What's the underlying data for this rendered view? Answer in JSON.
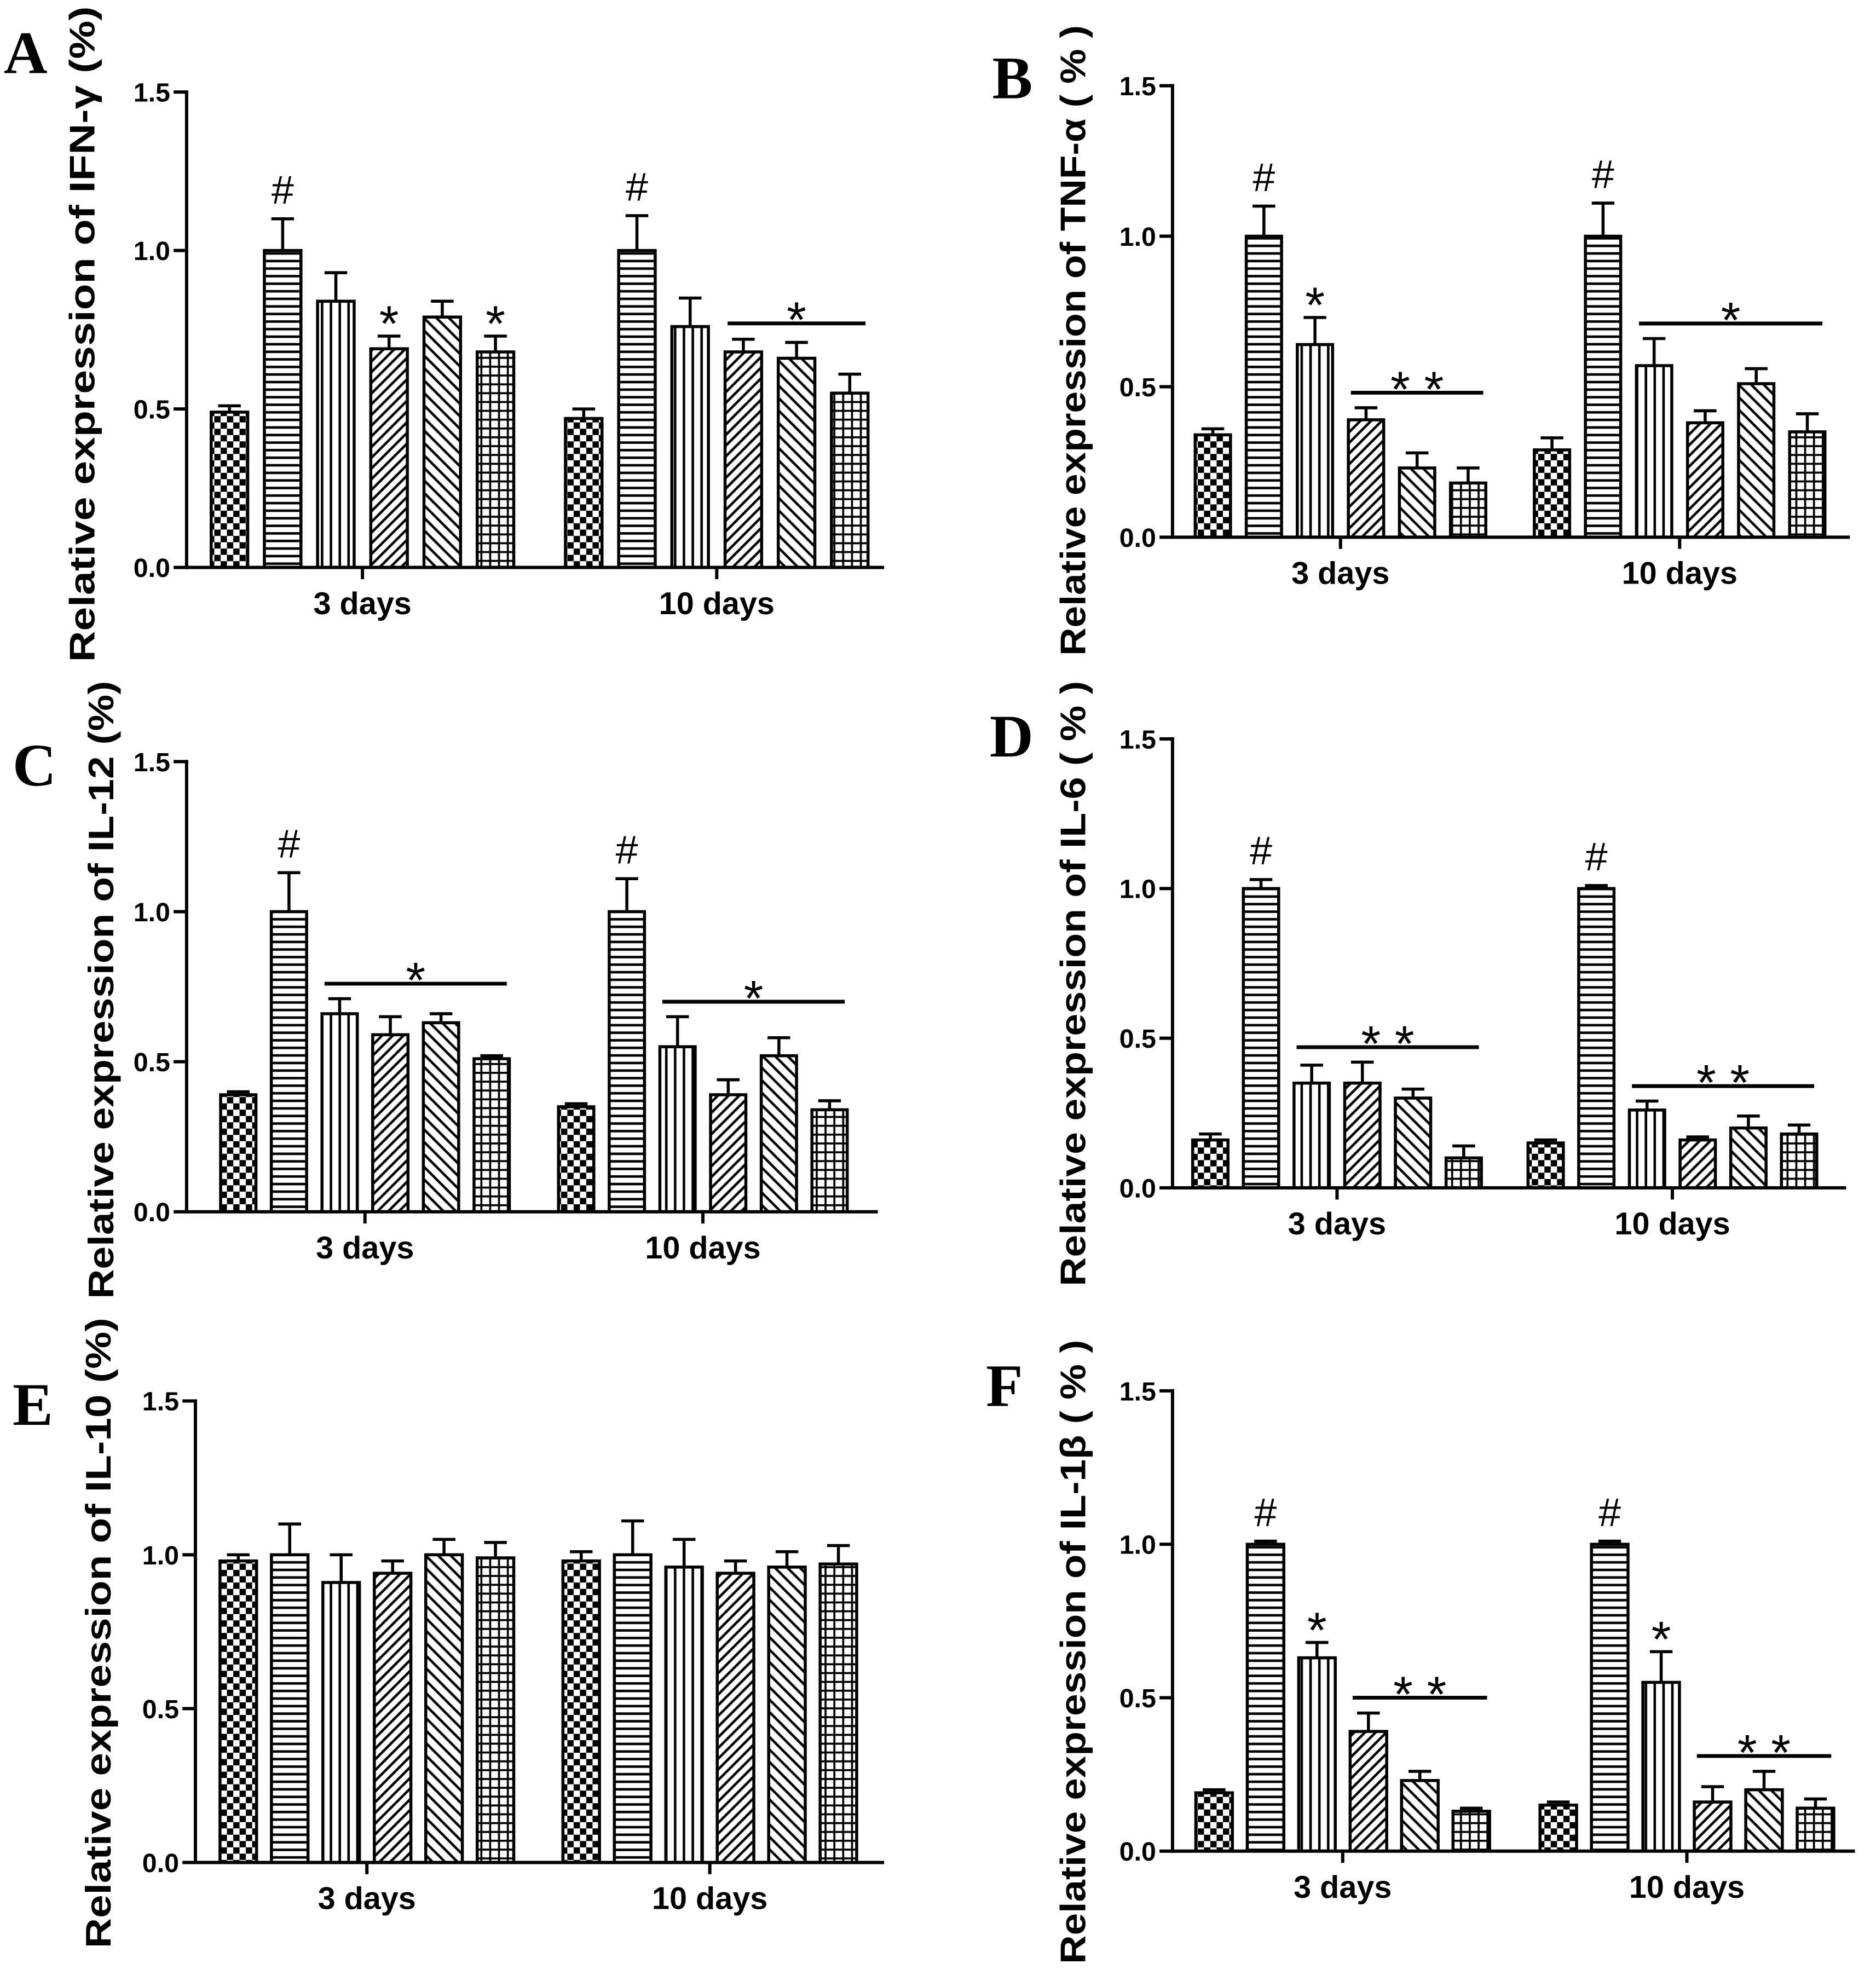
{
  "chart_data": [
    {
      "type": "bar",
      "panel_label": "A",
      "ylabel": "Relative expression of IFN-γ (%)",
      "categories": [
        "3 days",
        "10 days"
      ],
      "ylim": [
        0,
        1.5
      ],
      "yticks": [
        "0.0",
        "0.5",
        "1.0",
        "1.5"
      ],
      "values": [
        [
          0.49,
          1.0,
          0.84,
          0.69,
          0.79,
          0.68
        ],
        [
          0.47,
          1.0,
          0.76,
          0.68,
          0.66,
          0.55
        ]
      ],
      "errors": [
        [
          0.02,
          0.1,
          0.09,
          0.04,
          0.05,
          0.05
        ],
        [
          0.03,
          0.11,
          0.09,
          0.04,
          0.05,
          0.06
        ]
      ],
      "markers": [
        {
          "category": 0,
          "bar": 1,
          "text": "#"
        },
        {
          "category": 0,
          "bar": 3,
          "text": "*"
        },
        {
          "category": 0,
          "bar": 5,
          "text": "*"
        },
        {
          "category": 1,
          "bar": 1,
          "text": "#"
        }
      ],
      "brackets": [
        {
          "category": 1,
          "from": 3,
          "to": 5,
          "text": "*"
        }
      ]
    },
    {
      "type": "bar",
      "panel_label": "B",
      "ylabel": "Relative expression of TNF-α ( % )",
      "categories": [
        "3 days",
        "10 days"
      ],
      "ylim": [
        0,
        1.5
      ],
      "yticks": [
        "0.0",
        "0.5",
        "1.0",
        "1.5"
      ],
      "values": [
        [
          0.34,
          1.0,
          0.64,
          0.39,
          0.23,
          0.18
        ],
        [
          0.29,
          1.0,
          0.57,
          0.38,
          0.51,
          0.35
        ]
      ],
      "errors": [
        [
          0.02,
          0.1,
          0.09,
          0.04,
          0.05,
          0.05
        ],
        [
          0.04,
          0.11,
          0.09,
          0.04,
          0.05,
          0.06
        ]
      ],
      "markers": [
        {
          "category": 0,
          "bar": 1,
          "text": "#"
        },
        {
          "category": 0,
          "bar": 2,
          "text": "*"
        },
        {
          "category": 1,
          "bar": 1,
          "text": "#"
        }
      ],
      "brackets": [
        {
          "category": 0,
          "from": 3,
          "to": 5,
          "text": "* *"
        },
        {
          "category": 1,
          "from": 2,
          "to": 5,
          "text": "*"
        }
      ]
    },
    {
      "type": "bar",
      "panel_label": "C",
      "ylabel": "Relative expression of IL-12 (%)",
      "categories": [
        "3 days",
        "10 days"
      ],
      "ylim": [
        0,
        1.5
      ],
      "yticks": [
        "0.0",
        "0.5",
        "1.0",
        "1.5"
      ],
      "values": [
        [
          0.39,
          1.0,
          0.66,
          0.59,
          0.63,
          0.51
        ],
        [
          0.35,
          1.0,
          0.55,
          0.39,
          0.52,
          0.34
        ]
      ],
      "errors": [
        [
          0.01,
          0.13,
          0.05,
          0.06,
          0.03,
          0.01
        ],
        [
          0.01,
          0.11,
          0.1,
          0.05,
          0.06,
          0.03
        ]
      ],
      "markers": [
        {
          "category": 0,
          "bar": 1,
          "text": "#"
        },
        {
          "category": 1,
          "bar": 1,
          "text": "#"
        }
      ],
      "brackets": [
        {
          "category": 0,
          "from": 2,
          "to": 5,
          "text": "*"
        },
        {
          "category": 1,
          "from": 2,
          "to": 5,
          "text": "*"
        }
      ]
    },
    {
      "type": "bar",
      "panel_label": "D",
      "ylabel": "Relative expression of IL-6 ( % )",
      "categories": [
        "3 days",
        "10 days"
      ],
      "ylim": [
        0,
        1.5
      ],
      "yticks": [
        "0.0",
        "0.5",
        "1.0",
        "1.5"
      ],
      "values": [
        [
          0.16,
          1.0,
          0.35,
          0.35,
          0.3,
          0.1
        ],
        [
          0.15,
          1.0,
          0.26,
          0.16,
          0.2,
          0.18
        ]
      ],
      "errors": [
        [
          0.02,
          0.03,
          0.06,
          0.07,
          0.03,
          0.04
        ],
        [
          0.01,
          0.01,
          0.03,
          0.01,
          0.04,
          0.03
        ]
      ],
      "markers": [
        {
          "category": 0,
          "bar": 1,
          "text": "#"
        },
        {
          "category": 1,
          "bar": 1,
          "text": "#"
        }
      ],
      "brackets": [
        {
          "category": 0,
          "from": 2,
          "to": 5,
          "text": "* *"
        },
        {
          "category": 1,
          "from": 2,
          "to": 5,
          "text": "* *"
        }
      ]
    },
    {
      "type": "bar",
      "panel_label": "E",
      "ylabel": "Relative expression of IL-10 (%)",
      "categories": [
        "3 days",
        "10 days"
      ],
      "ylim": [
        0,
        1.5
      ],
      "yticks": [
        "0.0",
        "0.5",
        "1.0",
        "1.5"
      ],
      "values": [
        [
          0.98,
          1.0,
          0.91,
          0.94,
          1.0,
          0.99
        ],
        [
          0.98,
          1.0,
          0.96,
          0.94,
          0.96,
          0.97
        ]
      ],
      "errors": [
        [
          0.02,
          0.1,
          0.09,
          0.04,
          0.05,
          0.05
        ],
        [
          0.03,
          0.11,
          0.09,
          0.04,
          0.05,
          0.06
        ]
      ],
      "markers": [],
      "brackets": []
    },
    {
      "type": "bar",
      "panel_label": "F",
      "ylabel": "Relative expression of IL-1β ( % )",
      "categories": [
        "3 days",
        "10 days"
      ],
      "ylim": [
        0,
        1.5
      ],
      "yticks": [
        "0.0",
        "0.5",
        "1.0",
        "1.5"
      ],
      "values": [
        [
          0.19,
          1.0,
          0.63,
          0.39,
          0.23,
          0.13
        ],
        [
          0.15,
          1.0,
          0.55,
          0.16,
          0.2,
          0.14
        ]
      ],
      "errors": [
        [
          0.01,
          0.01,
          0.05,
          0.06,
          0.03,
          0.01
        ],
        [
          0.01,
          0.01,
          0.1,
          0.05,
          0.06,
          0.03
        ]
      ],
      "markers": [
        {
          "category": 0,
          "bar": 1,
          "text": "#"
        },
        {
          "category": 0,
          "bar": 2,
          "text": "*"
        },
        {
          "category": 1,
          "bar": 1,
          "text": "#"
        },
        {
          "category": 1,
          "bar": 2,
          "text": "*"
        }
      ],
      "brackets": [
        {
          "category": 0,
          "from": 3,
          "to": 5,
          "text": "* *"
        },
        {
          "category": 1,
          "from": 3,
          "to": 5,
          "text": "* *"
        }
      ]
    }
  ]
}
